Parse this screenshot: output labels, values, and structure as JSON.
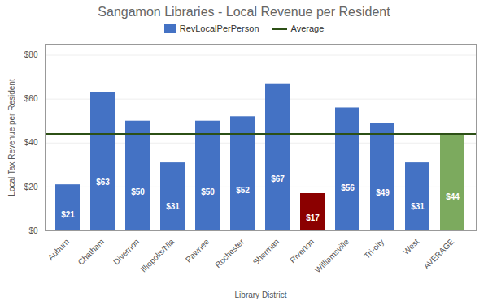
{
  "chart_data": {
    "type": "bar",
    "title": "Sangamon Libraries - Local Revenue per Resident",
    "xlabel": "Library District",
    "ylabel": "Local Tax Revenue per Resident",
    "categories": [
      "Auburn",
      "Chatham",
      "Divernon",
      "Illiopolis/Nia",
      "Pawnee",
      "Rochester",
      "Sherman",
      "Riverton",
      "Williamsville",
      "Tri-city",
      "West",
      "AVERAGE"
    ],
    "series": [
      {
        "name": "RevLocalPerPerson",
        "type": "bar",
        "color": "#4472C4",
        "colors": [
          "#4472C4",
          "#4472C4",
          "#4472C4",
          "#4472C4",
          "#4472C4",
          "#4472C4",
          "#4472C4",
          "#8B0000",
          "#4472C4",
          "#4472C4",
          "#4472C4",
          "#7CAA5E"
        ],
        "values": [
          21,
          63,
          50,
          31,
          50,
          52,
          67,
          17,
          56,
          49,
          31,
          44
        ],
        "value_labels": [
          "$21",
          "$63",
          "$50",
          "$31",
          "$50",
          "$52",
          "$67",
          "$17",
          "$56",
          "$49",
          "$31",
          "$44"
        ]
      },
      {
        "name": "Average",
        "type": "line",
        "color": "#2D5016",
        "values": [
          44,
          44,
          44,
          44,
          44,
          44,
          44,
          44,
          44,
          44,
          44,
          44
        ]
      }
    ],
    "ylim": [
      0,
      85
    ],
    "yticks": [
      {
        "value": 0,
        "label": "$0"
      },
      {
        "value": 20,
        "label": "$20"
      },
      {
        "value": 40,
        "label": "$40"
      },
      {
        "value": 60,
        "label": "$60"
      },
      {
        "value": 80,
        "label": "$80"
      }
    ],
    "grid": true,
    "legend": "top",
    "data_labels": true
  }
}
